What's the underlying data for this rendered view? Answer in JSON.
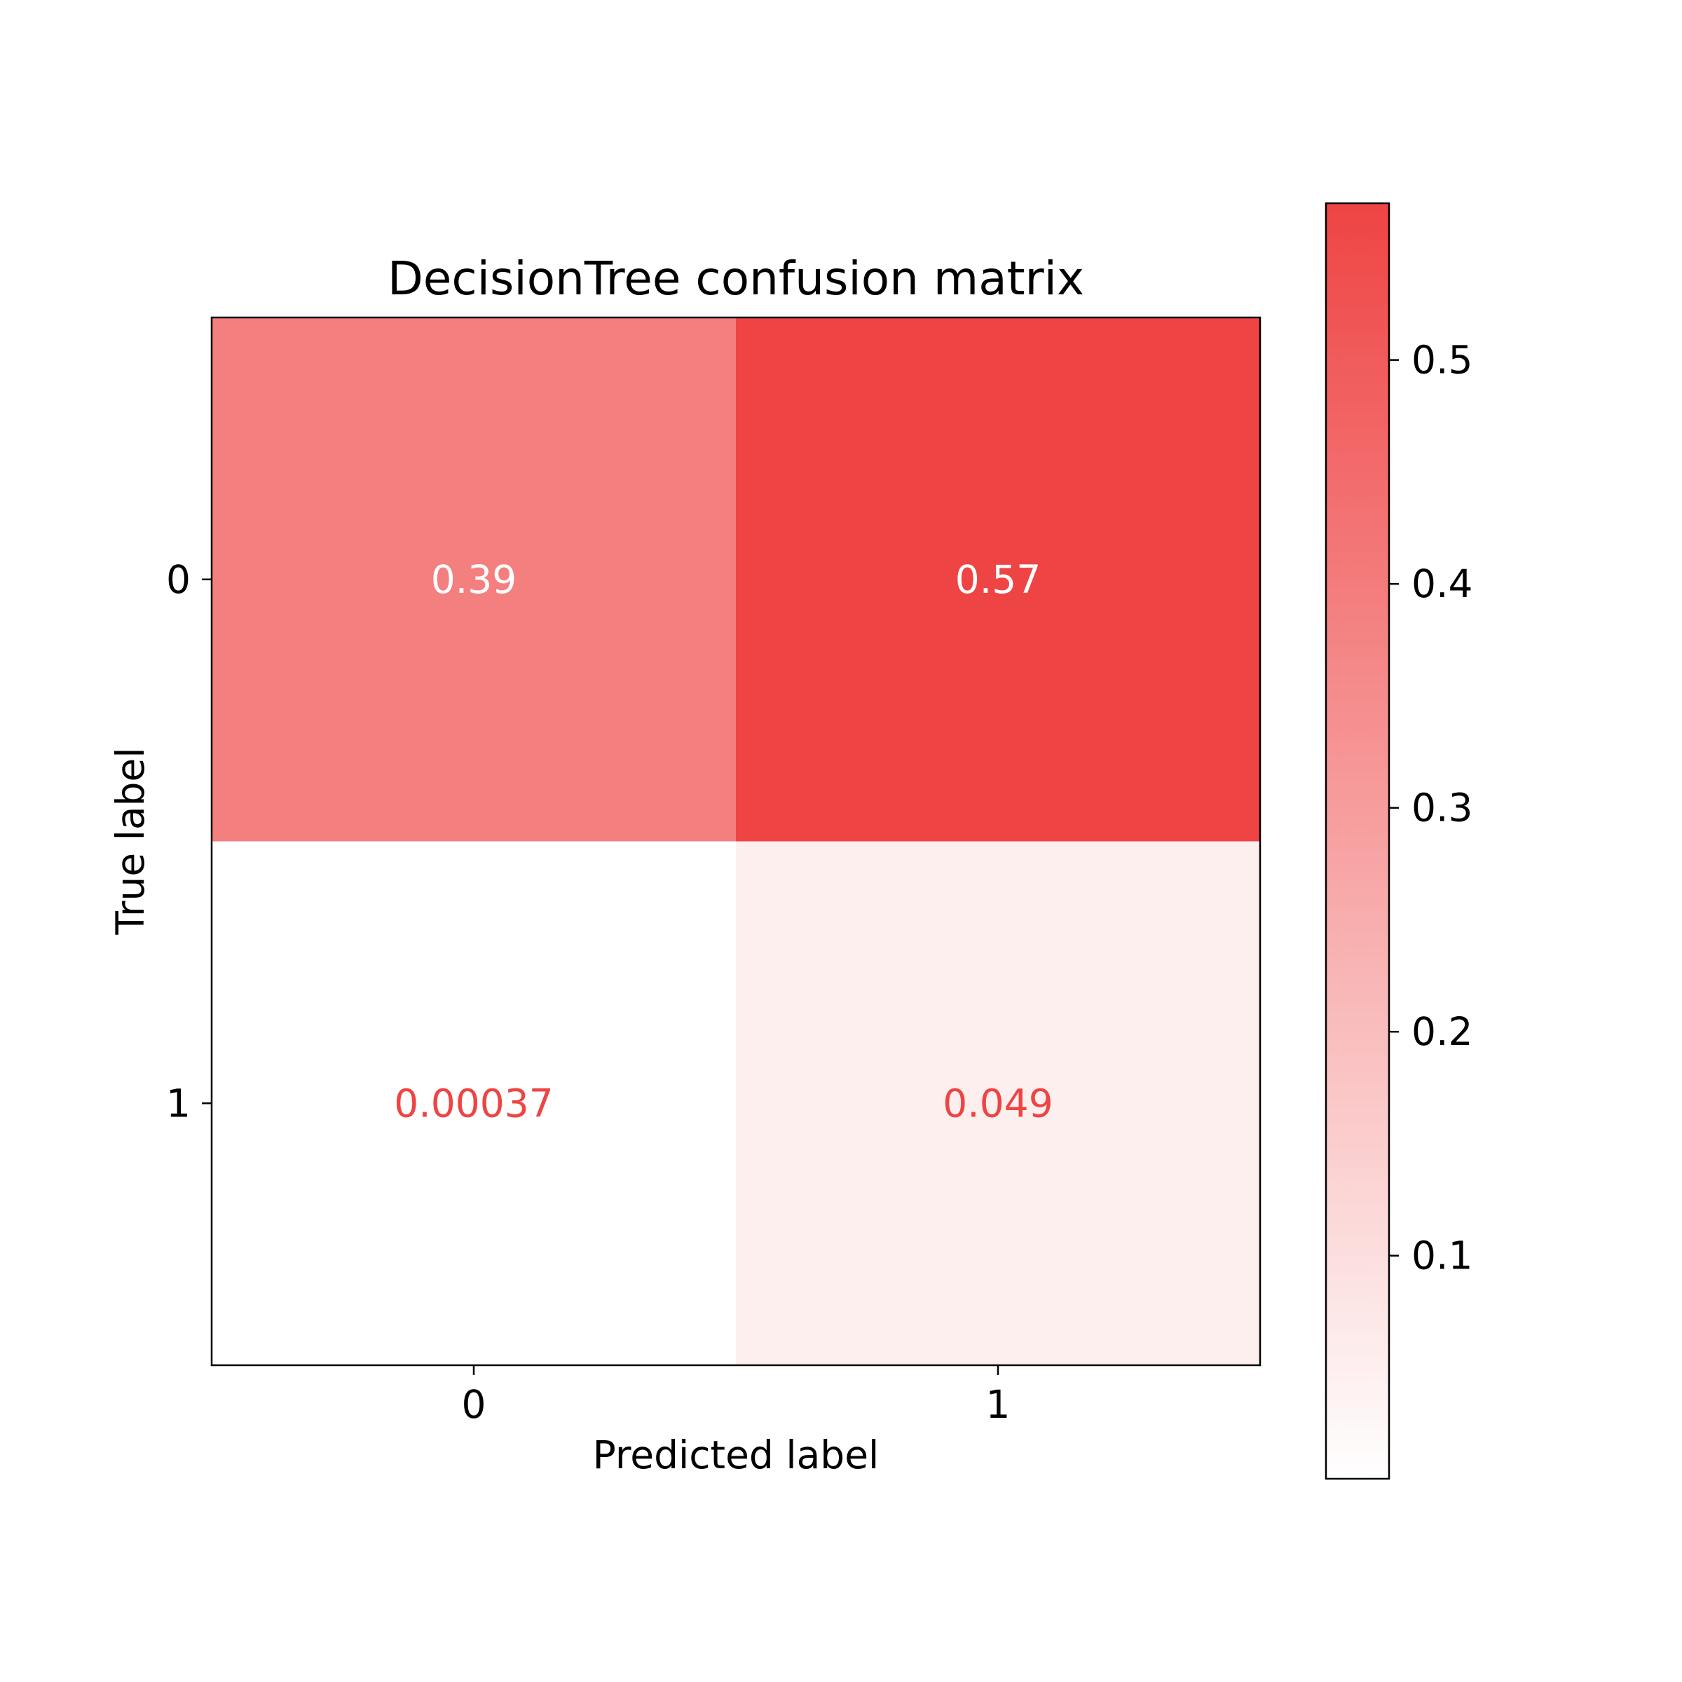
{
  "chart_data": {
    "type": "heatmap",
    "title": "DecisionTree confusion matrix",
    "xlabel": "Predicted label",
    "ylabel": "True label",
    "x_categories": [
      "0",
      "1"
    ],
    "y_categories": [
      "0",
      "1"
    ],
    "values": [
      [
        0.39,
        0.57
      ],
      [
        0.00037,
        0.049
      ]
    ],
    "value_labels": [
      [
        "0.39",
        "0.57"
      ],
      [
        "0.00037",
        "0.049"
      ]
    ],
    "colorbar": {
      "range": [
        0.00037,
        0.57
      ],
      "ticks": [
        0.1,
        0.2,
        0.3,
        0.4,
        0.5
      ],
      "tick_labels": [
        "0.1",
        "0.2",
        "0.3",
        "0.4",
        "0.5"
      ],
      "color_low": "#ffffff",
      "color_high": "#ef4444"
    },
    "colors": {
      "text_dark_cells": "#ffffff",
      "text_light_cells": "#ef4444"
    },
    "grid": false
  }
}
